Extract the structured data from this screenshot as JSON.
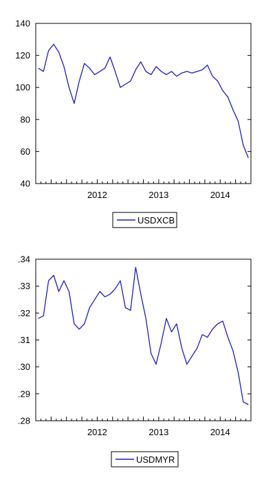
{
  "colors": {
    "series": "#1c1cc8",
    "axis": "#000000",
    "background": "#ffffff"
  },
  "chart_data": [
    {
      "type": "line",
      "title": "",
      "xlabel": "",
      "ylabel": "",
      "x_start": "2011-07",
      "x_end": "2014-12",
      "x_ticks": [
        "2012",
        "2013",
        "2014"
      ],
      "y_ticks": [
        "40",
        "60",
        "80",
        "100",
        "120",
        "140"
      ],
      "ylim": [
        40,
        140
      ],
      "grid": false,
      "legend": "below",
      "series": [
        {
          "name": "USDXCB",
          "x": [
            "2011-07",
            "2011-08",
            "2011-09",
            "2011-10",
            "2011-11",
            "2011-12",
            "2012-01",
            "2012-02",
            "2012-03",
            "2012-04",
            "2012-05",
            "2012-06",
            "2012-07",
            "2012-08",
            "2012-09",
            "2012-10",
            "2012-11",
            "2012-12",
            "2013-01",
            "2013-02",
            "2013-03",
            "2013-04",
            "2013-05",
            "2013-06",
            "2013-07",
            "2013-08",
            "2013-09",
            "2013-10",
            "2013-11",
            "2013-12",
            "2014-01",
            "2014-02",
            "2014-03",
            "2014-04",
            "2014-05",
            "2014-06",
            "2014-07",
            "2014-08",
            "2014-09",
            "2014-10",
            "2014-11",
            "2014-12"
          ],
          "values": [
            112,
            110,
            123,
            127,
            122,
            113,
            100,
            90,
            104,
            115,
            112,
            108,
            110,
            112,
            119,
            110,
            100,
            102,
            104,
            111,
            116,
            110,
            108,
            113,
            110,
            108,
            110,
            107,
            109,
            110,
            109,
            110,
            111,
            114,
            107,
            104,
            98,
            94,
            86,
            79,
            64,
            56
          ]
        }
      ]
    },
    {
      "type": "line",
      "title": "",
      "xlabel": "",
      "ylabel": "",
      "x_start": "2011-07",
      "x_end": "2014-12",
      "x_ticks": [
        "2012",
        "2013",
        "2014"
      ],
      "y_ticks": [
        ".28",
        ".29",
        ".30",
        ".31",
        ".32",
        ".33",
        ".34"
      ],
      "ylim": [
        0.28,
        0.34
      ],
      "grid": false,
      "legend": "below",
      "series": [
        {
          "name": "USDMYR",
          "x": [
            "2011-07",
            "2011-08",
            "2011-09",
            "2011-10",
            "2011-11",
            "2011-12",
            "2012-01",
            "2012-02",
            "2012-03",
            "2012-04",
            "2012-05",
            "2012-06",
            "2012-07",
            "2012-08",
            "2012-09",
            "2012-10",
            "2012-11",
            "2012-12",
            "2013-01",
            "2013-02",
            "2013-03",
            "2013-04",
            "2013-05",
            "2013-06",
            "2013-07",
            "2013-08",
            "2013-09",
            "2013-10",
            "2013-11",
            "2013-12",
            "2014-01",
            "2014-02",
            "2014-03",
            "2014-04",
            "2014-05",
            "2014-06",
            "2014-07",
            "2014-08",
            "2014-09",
            "2014-10",
            "2014-11",
            "2014-12"
          ],
          "values": [
            0.318,
            0.319,
            0.332,
            0.334,
            0.328,
            0.332,
            0.328,
            0.316,
            0.314,
            0.316,
            0.322,
            0.325,
            0.328,
            0.326,
            0.327,
            0.329,
            0.332,
            0.322,
            0.321,
            0.337,
            0.327,
            0.318,
            0.305,
            0.301,
            0.309,
            0.318,
            0.313,
            0.316,
            0.307,
            0.301,
            0.304,
            0.307,
            0.312,
            0.311,
            0.314,
            0.316,
            0.317,
            0.311,
            0.306,
            0.298,
            0.287,
            0.286
          ]
        }
      ]
    }
  ]
}
